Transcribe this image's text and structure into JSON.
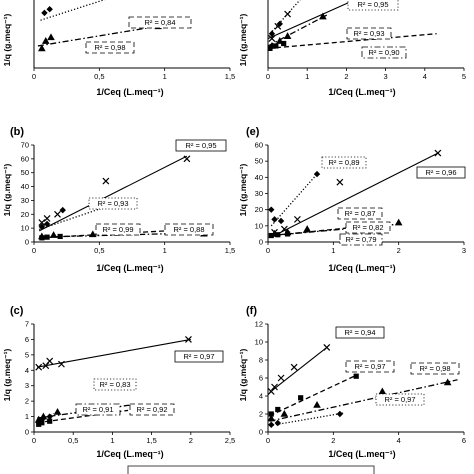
{
  "chart_data": [
    {
      "type": "scatter",
      "panel_label": "",
      "xlabel": "1/Ceq (L.meq⁻¹)",
      "ylabel": "1/q (g.meq⁻¹)",
      "xlim": [
        0,
        1.5
      ],
      "ylim": [
        0,
        8
      ],
      "xticks": [
        "0",
        "0,5",
        "1",
        "1,5"
      ],
      "yticks": [],
      "series": [
        {
          "marker": "x",
          "line": "solid",
          "points": [
            [
              0.06,
              6.0
            ],
            [
              0.13,
              6.4
            ],
            [
              0.22,
              6.6
            ],
            [
              0.33,
              6.9
            ]
          ],
          "fit": [
            [
              0.02,
              5.9
            ],
            [
              0.45,
              7.4
            ]
          ]
        },
        {
          "marker": "diamond",
          "line": "dotted",
          "points": [
            [
              0.08,
              4.5
            ],
            [
              0.12,
              4.8
            ],
            [
              1.08,
              7.4
            ]
          ],
          "fit": [
            [
              0.05,
              3.9
            ],
            [
              1.1,
              7.5
            ]
          ]
        },
        {
          "marker": "triangle",
          "line": "dash-dot",
          "points": [
            [
              0.06,
              1.6
            ],
            [
              0.09,
              2.2
            ],
            [
              0.13,
              2.5
            ],
            [
              0.95,
              3.4
            ]
          ],
          "fit": [
            [
              0.03,
              1.8
            ],
            [
              1.0,
              3.5
            ]
          ]
        },
        {
          "marker": "square",
          "line": "dashed",
          "points": [],
          "fit": []
        }
      ],
      "r2_labels": [
        {
          "text": "R² = 0,84",
          "border": "dashed"
        },
        {
          "text": "R² = 0,98",
          "border": "dashed"
        }
      ]
    },
    {
      "type": "scatter",
      "panel_label": "",
      "xlabel": "1/Ceq (L.meq⁻¹)",
      "ylabel": "1/q (g.meq⁻¹)",
      "xlim": [
        0,
        5
      ],
      "ylim": [
        0,
        20
      ],
      "xticks": [
        "0",
        "1",
        "2",
        "3",
        "4",
        "5"
      ],
      "yticks": [],
      "series": [
        {
          "marker": "x",
          "line": "solid",
          "points": [
            [
              0.1,
              6.0
            ],
            [
              0.25,
              8.5
            ],
            [
              0.5,
              11.0
            ]
          ],
          "fit": [
            [
              0.0,
              6.0
            ],
            [
              4.2,
              21.0
            ]
          ]
        },
        {
          "marker": "diamond",
          "line": "dotted",
          "points": [
            [
              0.1,
              7.0
            ],
            [
              0.3,
              9.0
            ],
            [
              0.95,
              15.0
            ]
          ],
          "fit": [
            [
              0.0,
              6.5
            ],
            [
              1.1,
              16.5
            ]
          ]
        },
        {
          "marker": "triangle",
          "line": "dash-dot",
          "points": [
            [
              0.1,
              4.5
            ],
            [
              0.3,
              5.5
            ],
            [
              0.5,
              6.5
            ],
            [
              1.4,
              10.5
            ]
          ],
          "fit": [
            [
              0.0,
              4.5
            ],
            [
              1.5,
              10.8
            ]
          ]
        },
        {
          "marker": "square",
          "line": "dashed",
          "points": [
            [
              0.05,
              4.0
            ],
            [
              0.2,
              4.5
            ],
            [
              0.4,
              5.0
            ]
          ],
          "fit": [
            [
              0.0,
              4.0
            ],
            [
              4.3,
              7.0
            ]
          ]
        }
      ],
      "r2_labels": [
        {
          "text": "R² = 0,95",
          "border": "dotted"
        },
        {
          "text": "R² = 0,93",
          "border": "dashed"
        },
        {
          "text": "R² = 0,90",
          "border": "dash-dot"
        }
      ]
    },
    {
      "type": "scatter",
      "panel_label": "(b)",
      "xlabel": "1/Ceq (L.meq⁻¹)",
      "ylabel": "1/q (g.meq⁻¹)",
      "xlim": [
        0,
        1.5
      ],
      "ylim": [
        0,
        70
      ],
      "xticks": [
        "0",
        "0,5",
        "1",
        "1,5"
      ],
      "yticks": [
        "0",
        "10",
        "20",
        "30",
        "40",
        "50",
        "60",
        "70"
      ],
      "series": [
        {
          "marker": "x",
          "line": "solid",
          "points": [
            [
              0.06,
              14
            ],
            [
              0.1,
              17
            ],
            [
              0.18,
              20
            ],
            [
              0.55,
              44
            ],
            [
              1.17,
              60
            ]
          ],
          "fit": [
            [
              0.04,
              8
            ],
            [
              1.17,
              62
            ]
          ]
        },
        {
          "marker": "diamond",
          "line": "dotted",
          "points": [
            [
              0.06,
              11
            ],
            [
              0.1,
              13
            ],
            [
              0.22,
              23
            ],
            [
              0.6,
              27
            ]
          ],
          "fit": [
            [
              0.04,
              9
            ],
            [
              0.6,
              27
            ]
          ]
        },
        {
          "marker": "triangle",
          "line": "dash-dot",
          "points": [
            [
              0.06,
              4
            ],
            [
              0.15,
              5
            ],
            [
              0.45,
              5.5
            ],
            [
              1.3,
              6
            ]
          ],
          "fit": [
            [
              0.04,
              3.5
            ],
            [
              1.35,
              6.8
            ]
          ]
        },
        {
          "marker": "square",
          "line": "dashed",
          "points": [
            [
              0.06,
              3
            ],
            [
              0.1,
              3.5
            ],
            [
              0.2,
              4
            ]
          ],
          "fit": [
            [
              0.04,
              3
            ],
            [
              1.2,
              9
            ]
          ]
        }
      ],
      "r2_labels": [
        {
          "text": "R² = 0,95",
          "border": "solid"
        },
        {
          "text": "R² = 0,93",
          "border": "dotted"
        },
        {
          "text": "R² = 0,99",
          "border": "dashed"
        },
        {
          "text": "R² = 0,88",
          "border": "dashed"
        }
      ]
    },
    {
      "type": "scatter",
      "panel_label": "(e)",
      "xlabel": "1/Ceq (L.meq⁻¹)",
      "ylabel": "1/q (g.meq⁻¹)",
      "xlim": [
        0,
        3
      ],
      "ylim": [
        0,
        60
      ],
      "xticks": [
        "0",
        "1",
        "2",
        "3"
      ],
      "yticks": [
        "0",
        "10",
        "20",
        "30",
        "40",
        "50",
        "60"
      ],
      "series": [
        {
          "marker": "x",
          "line": "solid",
          "points": [
            [
              0.1,
              6
            ],
            [
              0.25,
              8
            ],
            [
              0.45,
              14
            ],
            [
              1.1,
              37
            ],
            [
              2.6,
              55
            ]
          ],
          "fit": [
            [
              0.05,
              3
            ],
            [
              2.6,
              55
            ]
          ]
        },
        {
          "marker": "diamond",
          "line": "dotted",
          "points": [
            [
              0.05,
              20
            ],
            [
              0.1,
              14
            ],
            [
              0.2,
              13
            ],
            [
              0.75,
              42
            ]
          ],
          "fit": [
            [
              0.05,
              10
            ],
            [
              0.75,
              42
            ]
          ]
        },
        {
          "marker": "triangle",
          "line": "dash-dot",
          "points": [
            [
              0.1,
              5
            ],
            [
              0.3,
              6
            ],
            [
              0.6,
              8
            ],
            [
              2.0,
              12
            ]
          ],
          "fit": [
            [
              0.05,
              4
            ],
            [
              2.0,
              11
            ]
          ]
        },
        {
          "marker": "square",
          "line": "dashed",
          "points": [
            [
              0.05,
              4
            ],
            [
              0.15,
              4.5
            ],
            [
              0.3,
              5
            ]
          ],
          "fit": [
            [
              0.05,
              4
            ],
            [
              1.8,
              11
            ]
          ]
        }
      ],
      "r2_labels": [
        {
          "text": "R² = 0,89",
          "border": "dotted"
        },
        {
          "text": "R² = 0,96",
          "border": "solid"
        },
        {
          "text": "R² = 0,87",
          "border": "dashed"
        },
        {
          "text": "R² = 0,82",
          "border": "dashed"
        },
        {
          "text": "R² = 0,79",
          "border": "dash-dot"
        }
      ]
    },
    {
      "type": "scatter",
      "panel_label": "(c)",
      "xlabel": "1/Ceq (L.meq⁻¹)",
      "ylabel": "1/q (g.meq⁻¹)",
      "xlim": [
        0,
        2.5
      ],
      "ylim": [
        0,
        7
      ],
      "xticks": [
        "0",
        "0,5",
        "1",
        "1,5",
        "2",
        "2,5"
      ],
      "yticks": [
        "0",
        "1",
        "2",
        "3",
        "4",
        "5",
        "6",
        "7"
      ],
      "series": [
        {
          "marker": "x",
          "line": "solid",
          "points": [
            [
              0.06,
              4.2
            ],
            [
              0.15,
              4.3
            ],
            [
              0.2,
              4.6
            ],
            [
              0.35,
              4.4
            ],
            [
              1.97,
              6.0
            ]
          ],
          "fit": [
            [
              0.04,
              4.2
            ],
            [
              2.0,
              6.0
            ]
          ]
        },
        {
          "marker": "diamond",
          "line": "dotted",
          "points": [
            [
              0.06,
              0.6
            ],
            [
              0.1,
              0.8
            ],
            [
              0.2,
              1.0
            ]
          ],
          "fit": [
            [
              0.04,
              0.5
            ],
            [
              0.25,
              1.2
            ]
          ]
        },
        {
          "marker": "triangle",
          "line": "dash-dot",
          "points": [
            [
              0.06,
              0.8
            ],
            [
              0.12,
              1.0
            ],
            [
              0.3,
              1.3
            ]
          ],
          "fit": [
            [
              0.04,
              0.9
            ],
            [
              1.3,
              1.8
            ]
          ]
        },
        {
          "marker": "square",
          "line": "dashed",
          "points": [
            [
              0.06,
              0.5
            ],
            [
              0.1,
              0.6
            ],
            [
              0.2,
              0.7
            ]
          ],
          "fit": [
            [
              0.04,
              0.6
            ],
            [
              1.2,
              1.4
            ]
          ]
        }
      ],
      "r2_labels": [
        {
          "text": "R² = 0,97",
          "border": "solid"
        },
        {
          "text": "R² = 0,83",
          "border": "dotted"
        },
        {
          "text": "R² = 0,91",
          "border": "dash-dot"
        },
        {
          "text": "R² = 0,92",
          "border": "dashed"
        }
      ]
    },
    {
      "type": "scatter",
      "panel_label": "(f)",
      "xlabel": "1/Ceq (L.meq⁻¹)",
      "ylabel": "1/q (g.méq⁻¹)",
      "xlim": [
        0,
        6
      ],
      "ylim": [
        0,
        12
      ],
      "xticks": [
        "0",
        "2",
        "4",
        "6"
      ],
      "yticks": [
        "0",
        "2",
        "4",
        "6",
        "8",
        "10",
        "12"
      ],
      "series": [
        {
          "marker": "x",
          "line": "solid",
          "points": [
            [
              0.1,
              4.5
            ],
            [
              0.2,
              5.0
            ],
            [
              0.4,
              6.0
            ],
            [
              0.8,
              7.2
            ],
            [
              1.8,
              9.4
            ]
          ],
          "fit": [
            [
              0.05,
              4.4
            ],
            [
              1.8,
              9.4
            ]
          ]
        },
        {
          "marker": "diamond",
          "line": "dotted",
          "points": [
            [
              0.1,
              0.8
            ],
            [
              0.3,
              1.0
            ],
            [
              2.2,
              2.0
            ]
          ],
          "fit": [
            [
              0.05,
              0.7
            ],
            [
              2.3,
              2.1
            ]
          ]
        },
        {
          "marker": "triangle",
          "line": "dash-dot",
          "points": [
            [
              0.1,
              1.5
            ],
            [
              0.5,
              2.0
            ],
            [
              1.5,
              3.0
            ],
            [
              3.5,
              4.5
            ],
            [
              5.5,
              5.5
            ]
          ],
          "fit": [
            [
              0.05,
              1.2
            ],
            [
              5.8,
              5.8
            ]
          ]
        },
        {
          "marker": "square",
          "line": "dashed",
          "points": [
            [
              0.1,
              2.0
            ],
            [
              0.3,
              2.5
            ],
            [
              1.0,
              3.8
            ],
            [
              2.7,
              6.2
            ]
          ],
          "fit": [
            [
              0.05,
              1.8
            ],
            [
              2.7,
              6.3
            ]
          ]
        }
      ],
      "r2_labels": [
        {
          "text": "R² = 0,94",
          "border": "solid"
        },
        {
          "text": "R² = 0,97",
          "border": "dashed"
        },
        {
          "text": "R² = 0,98",
          "border": "dashed"
        },
        {
          "text": "R² = 0,97",
          "border": "dotted"
        }
      ]
    }
  ]
}
